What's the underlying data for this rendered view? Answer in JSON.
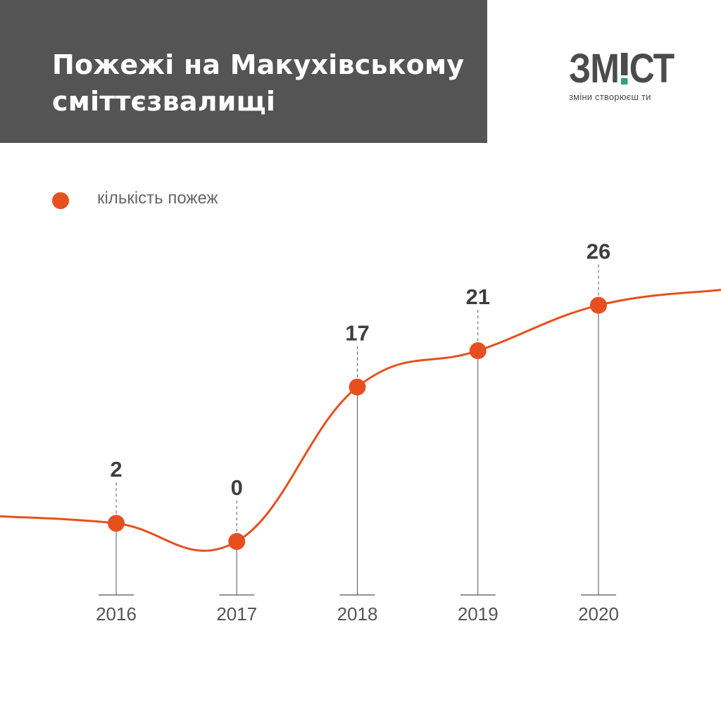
{
  "header": {
    "title": "Пожежі на Макухівському сміттєзвалищі"
  },
  "logo": {
    "word_left": "ЗМ",
    "word_right": "СТ",
    "tagline": "зміни створюєш ти",
    "accent_color": "#27a37a"
  },
  "chart_data": {
    "type": "line",
    "title": "Пожежі на Макухівському сміттєзвалищі",
    "categories": [
      "2016",
      "2017",
      "2018",
      "2019",
      "2020"
    ],
    "series": [
      {
        "name": "кількість пожеж",
        "values": [
          2,
          0,
          17,
          21,
          26
        ],
        "color": "#e5501e"
      }
    ],
    "xlabel": "",
    "ylabel": "",
    "ylim": [
      0,
      30
    ],
    "legend": "top-left",
    "grid": false,
    "data_labels": true
  }
}
